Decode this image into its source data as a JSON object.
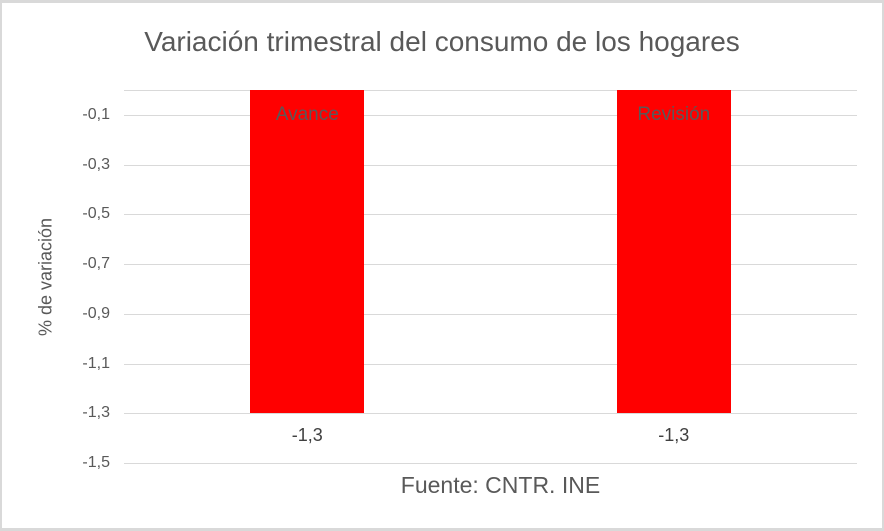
{
  "chart_data": {
    "type": "bar",
    "title": "Variación trimestral del consumo de los hogares",
    "categories": [
      "Avance",
      "Revisión"
    ],
    "values": [
      -1.3,
      -1.3
    ],
    "data_labels": [
      "-1,3",
      "-1,3"
    ],
    "ylabel": "% de variación",
    "xlabel": "Fuente: CNTR. INE",
    "ylim": [
      -1.5,
      0
    ],
    "yticks": [
      {
        "value": -0.1,
        "label": "-0,1"
      },
      {
        "value": -0.3,
        "label": "-0,3"
      },
      {
        "value": -0.5,
        "label": "-0,5"
      },
      {
        "value": -0.7,
        "label": "-0,7"
      },
      {
        "value": -0.9,
        "label": "-0,9"
      },
      {
        "value": -1.1,
        "label": "-1,1"
      },
      {
        "value": -1.3,
        "label": "-1,3"
      },
      {
        "value": -1.5,
        "label": "-1,5"
      }
    ],
    "grid": true,
    "legend": false,
    "colors": {
      "bar": "#ff0000",
      "gridline": "#d9d9d9",
      "axis_text": "#595959",
      "data_label": "#404040",
      "title_text": "#595959",
      "frame_border": "#d9d9d9",
      "background": "#ffffff"
    }
  }
}
